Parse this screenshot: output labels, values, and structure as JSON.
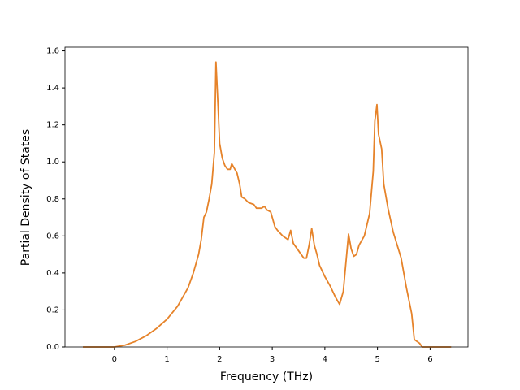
{
  "chart_data": {
    "type": "line",
    "x_label": "Frequency (THz)",
    "y_label": "Partial Density of States",
    "x": [
      -0.6,
      0,
      0.2,
      0.4,
      0.6,
      0.8,
      1.0,
      1.2,
      1.4,
      1.5,
      1.6,
      1.65,
      1.7,
      1.75,
      1.8,
      1.85,
      1.9,
      1.93,
      1.97,
      2.0,
      2.05,
      2.1,
      2.15,
      2.2,
      2.23,
      2.27,
      2.33,
      2.38,
      2.42,
      2.48,
      2.55,
      2.65,
      2.7,
      2.8,
      2.85,
      2.9,
      2.97,
      3.0,
      3.05,
      3.1,
      3.2,
      3.3,
      3.35,
      3.4,
      3.5,
      3.6,
      3.65,
      3.7,
      3.75,
      3.8,
      3.85,
      3.9,
      4.0,
      4.1,
      4.2,
      4.28,
      4.35,
      4.45,
      4.5,
      4.55,
      4.6,
      4.65,
      4.75,
      4.85,
      4.92,
      4.95,
      4.99,
      5.02,
      5.08,
      5.12,
      5.2,
      5.3,
      5.45,
      5.55,
      5.65,
      5.7,
      5.8,
      5.85,
      6.0,
      6.4
    ],
    "series": [
      {
        "color": "#e6832a",
        "values": [
          0,
          0,
          0.01,
          0.03,
          0.06,
          0.1,
          0.15,
          0.22,
          0.32,
          0.4,
          0.5,
          0.58,
          0.7,
          0.73,
          0.8,
          0.88,
          1.05,
          1.54,
          1.3,
          1.1,
          1.02,
          0.98,
          0.96,
          0.96,
          0.99,
          0.97,
          0.94,
          0.88,
          0.81,
          0.8,
          0.78,
          0.77,
          0.75,
          0.75,
          0.76,
          0.74,
          0.73,
          0.7,
          0.65,
          0.63,
          0.6,
          0.58,
          0.63,
          0.56,
          0.52,
          0.48,
          0.48,
          0.55,
          0.64,
          0.55,
          0.5,
          0.44,
          0.38,
          0.33,
          0.27,
          0.23,
          0.3,
          0.61,
          0.53,
          0.49,
          0.5,
          0.55,
          0.6,
          0.72,
          0.95,
          1.22,
          1.31,
          1.15,
          1.07,
          0.88,
          0.75,
          0.62,
          0.48,
          0.32,
          0.18,
          0.04,
          0.02,
          0,
          0,
          0
        ]
      }
    ],
    "xlim": [
      -0.94,
      6.72
    ],
    "ylim": [
      0,
      1.62
    ],
    "xticks": [
      0,
      1,
      2,
      3,
      4,
      5,
      6
    ],
    "yticks": [
      {
        "value": 0,
        "label": "0.0"
      },
      {
        "value": 0.2,
        "label": "0.2"
      },
      {
        "value": 0.4,
        "label": "0.4"
      },
      {
        "value": 0.6,
        "label": "0.6"
      },
      {
        "value": 0.8,
        "label": "0.8"
      },
      {
        "value": 1.0,
        "label": "1.0"
      },
      {
        "value": 1.2,
        "label": "1.2"
      },
      {
        "value": 1.4,
        "label": "1.4"
      },
      {
        "value": 1.6,
        "label": "1.6"
      }
    ],
    "grid": false
  }
}
